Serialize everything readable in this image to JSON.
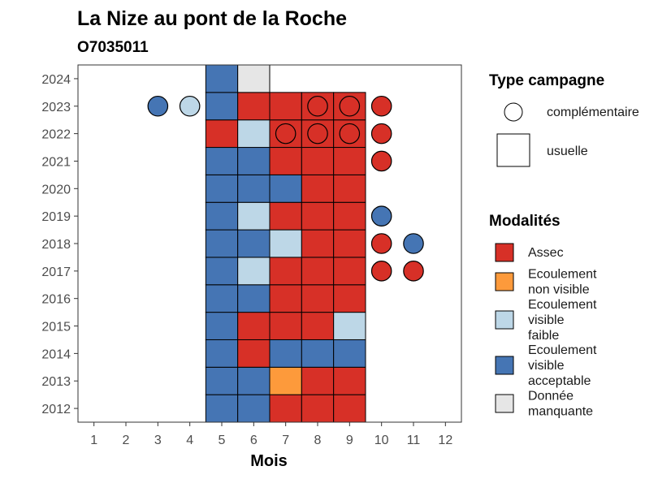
{
  "chart_data": {
    "type": "heatmap",
    "title": "La Nize au pont de la Roche",
    "subtitle": "O7035011",
    "xlabel": "Mois",
    "ylabel": "",
    "x_ticks": [
      "1",
      "2",
      "3",
      "4",
      "5",
      "6",
      "7",
      "8",
      "9",
      "10",
      "11",
      "12"
    ],
    "y_ticks": [
      "2012",
      "2013",
      "2014",
      "2015",
      "2016",
      "2017",
      "2018",
      "2019",
      "2020",
      "2021",
      "2022",
      "2023",
      "2024"
    ],
    "xlim": [
      0.5,
      12.5
    ],
    "ylim": [
      2011.5,
      2024.5
    ],
    "grid": false,
    "legend_position": "right",
    "legends": {
      "type_campagne": {
        "title": "Type campagne",
        "items": [
          {
            "key": "complementaire",
            "label": "complémentaire",
            "shape": "circle"
          },
          {
            "key": "usuelle",
            "label": "usuelle",
            "shape": "square"
          }
        ]
      },
      "modalites": {
        "title": "Modalités",
        "items": [
          {
            "key": "assec",
            "lines": [
              "Assec"
            ],
            "color": "#d73027"
          },
          {
            "key": "ecoulement_non_visible",
            "lines": [
              "Ecoulement",
              "non visible"
            ],
            "color": "#fd9a3b"
          },
          {
            "key": "ecoulement_visible_faible",
            "lines": [
              "Ecoulement",
              "visible",
              "faible"
            ],
            "color": "#bdd7e7"
          },
          {
            "key": "ecoulement_visible_acceptable",
            "lines": [
              "Ecoulement",
              "visible",
              "acceptable"
            ],
            "color": "#4575b4"
          },
          {
            "key": "donnee_manquante",
            "lines": [
              "Donnée",
              "manquante"
            ],
            "color": "#e6e6e6"
          }
        ]
      }
    },
    "usuelle": [
      {
        "year": 2012,
        "values": {
          "5": "ecoulement_visible_acceptable",
          "6": "ecoulement_visible_acceptable",
          "7": "assec",
          "8": "assec",
          "9": "assec"
        }
      },
      {
        "year": 2013,
        "values": {
          "5": "ecoulement_visible_acceptable",
          "6": "ecoulement_visible_acceptable",
          "7": "ecoulement_non_visible",
          "8": "assec",
          "9": "assec"
        }
      },
      {
        "year": 2014,
        "values": {
          "5": "ecoulement_visible_acceptable",
          "6": "assec",
          "7": "ecoulement_visible_acceptable",
          "8": "ecoulement_visible_acceptable",
          "9": "ecoulement_visible_acceptable"
        }
      },
      {
        "year": 2015,
        "values": {
          "5": "ecoulement_visible_acceptable",
          "6": "assec",
          "7": "assec",
          "8": "assec",
          "9": "ecoulement_visible_faible"
        }
      },
      {
        "year": 2016,
        "values": {
          "5": "ecoulement_visible_acceptable",
          "6": "ecoulement_visible_acceptable",
          "7": "assec",
          "8": "assec",
          "9": "assec"
        }
      },
      {
        "year": 2017,
        "values": {
          "5": "ecoulement_visible_acceptable",
          "6": "ecoulement_visible_faible",
          "7": "assec",
          "8": "assec",
          "9": "assec"
        }
      },
      {
        "year": 2018,
        "values": {
          "5": "ecoulement_visible_acceptable",
          "6": "ecoulement_visible_acceptable",
          "7": "ecoulement_visible_faible",
          "8": "assec",
          "9": "assec"
        }
      },
      {
        "year": 2019,
        "values": {
          "5": "ecoulement_visible_acceptable",
          "6": "ecoulement_visible_faible",
          "7": "assec",
          "8": "assec",
          "9": "assec"
        }
      },
      {
        "year": 2020,
        "values": {
          "5": "ecoulement_visible_acceptable",
          "6": "ecoulement_visible_acceptable",
          "7": "ecoulement_visible_acceptable",
          "8": "assec",
          "9": "assec"
        }
      },
      {
        "year": 2021,
        "values": {
          "5": "ecoulement_visible_acceptable",
          "6": "ecoulement_visible_acceptable",
          "7": "assec",
          "8": "assec",
          "9": "assec"
        }
      },
      {
        "year": 2022,
        "values": {
          "5": "assec",
          "6": "ecoulement_visible_faible",
          "7": "assec",
          "8": "assec",
          "9": "assec"
        }
      },
      {
        "year": 2023,
        "values": {
          "5": "ecoulement_visible_acceptable",
          "6": "assec",
          "7": "assec",
          "8": "assec",
          "9": "assec"
        }
      },
      {
        "year": 2024,
        "values": {
          "5": "ecoulement_visible_acceptable",
          "6": "donnee_manquante"
        }
      }
    ],
    "complementaire": [
      {
        "year": 2023,
        "month": 3,
        "value": "ecoulement_visible_acceptable"
      },
      {
        "year": 2023,
        "month": 4,
        "value": "ecoulement_visible_faible"
      },
      {
        "year": 2023,
        "month": 8,
        "value": "assec"
      },
      {
        "year": 2023,
        "month": 9,
        "value": "assec"
      },
      {
        "year": 2023,
        "month": 10,
        "value": "assec"
      },
      {
        "year": 2022,
        "month": 7,
        "value": "assec"
      },
      {
        "year": 2022,
        "month": 8,
        "value": "assec"
      },
      {
        "year": 2022,
        "month": 9,
        "value": "assec"
      },
      {
        "year": 2022,
        "month": 10,
        "value": "assec"
      },
      {
        "year": 2021,
        "month": 10,
        "value": "assec"
      },
      {
        "year": 2019,
        "month": 10,
        "value": "ecoulement_visible_acceptable"
      },
      {
        "year": 2018,
        "month": 10,
        "value": "assec"
      },
      {
        "year": 2018,
        "month": 11,
        "value": "ecoulement_visible_acceptable"
      },
      {
        "year": 2017,
        "month": 10,
        "value": "assec"
      },
      {
        "year": 2017,
        "month": 11,
        "value": "assec"
      }
    ]
  }
}
